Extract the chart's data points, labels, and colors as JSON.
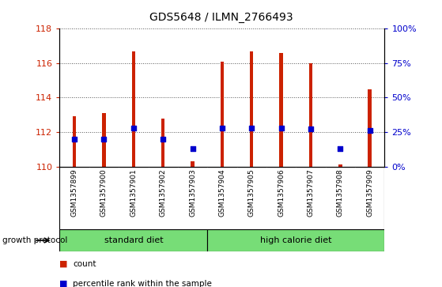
{
  "title": "GDS5648 / ILMN_2766493",
  "samples": [
    "GSM1357899",
    "GSM1357900",
    "GSM1357901",
    "GSM1357902",
    "GSM1357903",
    "GSM1357904",
    "GSM1357905",
    "GSM1357906",
    "GSM1357907",
    "GSM1357908",
    "GSM1357909"
  ],
  "counts": [
    112.9,
    113.1,
    116.7,
    112.8,
    110.3,
    116.1,
    116.7,
    116.6,
    116.0,
    110.1,
    114.5
  ],
  "percentile_ranks": [
    20,
    20,
    28,
    20,
    13,
    28,
    28,
    28,
    27,
    13,
    26
  ],
  "bar_bottom": 110,
  "ylim_left": [
    110,
    118
  ],
  "ylim_right": [
    0,
    100
  ],
  "yticks_left": [
    110,
    112,
    114,
    116,
    118
  ],
  "yticks_right": [
    0,
    25,
    50,
    75,
    100
  ],
  "ytick_labels_right": [
    "0%",
    "25%",
    "50%",
    "75%",
    "100%"
  ],
  "bar_color": "#cc2200",
  "dot_color": "#0000cc",
  "group_labels": [
    "standard diet",
    "high calorie diet"
  ],
  "group_ranges": [
    [
      0,
      4
    ],
    [
      5,
      10
    ]
  ],
  "group_color": "#77dd77",
  "plot_bg": "#ffffff",
  "tick_bg": "#cccccc",
  "legend_count_label": "count",
  "legend_pct_label": "percentile rank within the sample",
  "bar_width": 0.12,
  "figsize": [
    5.59,
    3.63
  ],
  "dpi": 100
}
